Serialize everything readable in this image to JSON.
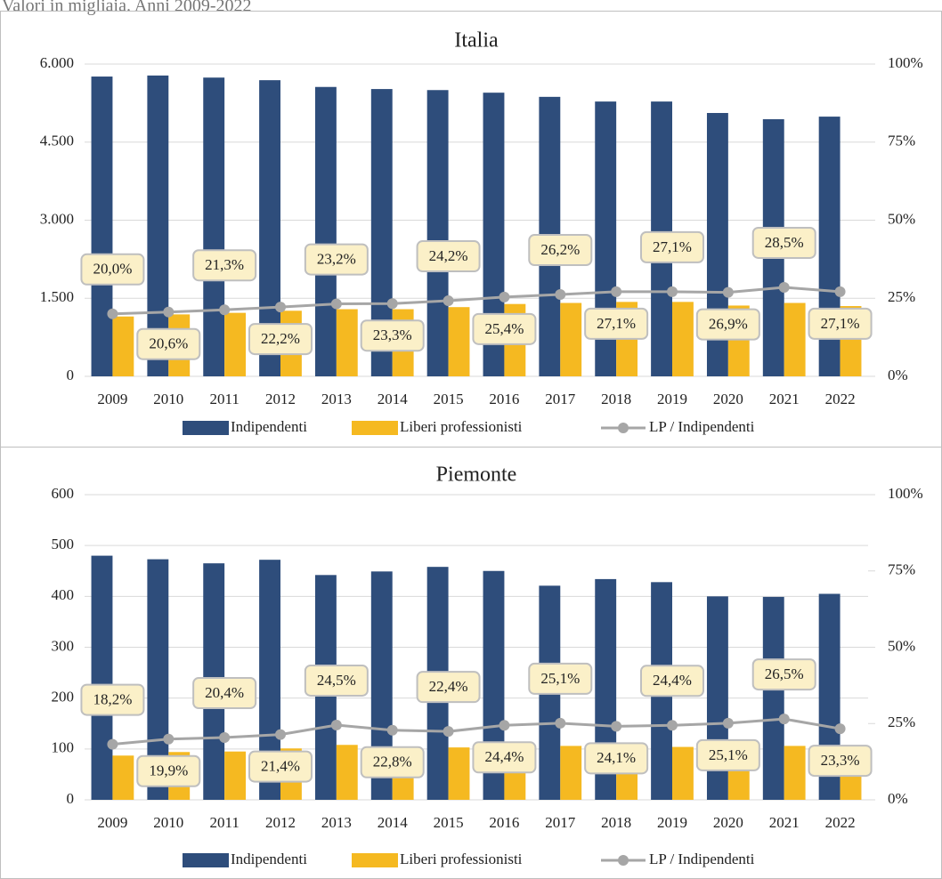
{
  "caption": "Valori in migliaia. Anni 2009-2022",
  "chart_data": [
    {
      "type": "bar",
      "title": "Italia",
      "categories": [
        "2009",
        "2010",
        "2011",
        "2012",
        "2013",
        "2014",
        "2015",
        "2016",
        "2017",
        "2018",
        "2019",
        "2020",
        "2021",
        "2022"
      ],
      "series": [
        {
          "name": "Indipendenti",
          "color": "#2e4d7b",
          "values": [
            5760,
            5780,
            5740,
            5690,
            5560,
            5520,
            5500,
            5450,
            5370,
            5280,
            5280,
            5060,
            4940,
            4990
          ]
        },
        {
          "name": "Liberi professionisti",
          "color": "#f5b921",
          "values": [
            1150,
            1190,
            1220,
            1260,
            1290,
            1290,
            1330,
            1390,
            1410,
            1430,
            1430,
            1360,
            1410,
            1350
          ]
        },
        {
          "name": "LP / Indipendenti",
          "color": "#a6a6a6",
          "type": "line",
          "axis": "y2",
          "values": [
            20.0,
            20.6,
            21.3,
            22.2,
            23.2,
            23.3,
            24.2,
            25.4,
            26.2,
            27.1,
            27.1,
            26.9,
            28.5,
            27.1
          ],
          "value_labels": [
            "20,0%",
            "20,6%",
            "21,3%",
            "22,2%",
            "23,2%",
            "23,3%",
            "24,2%",
            "25,4%",
            "26,2%",
            "27,1%",
            "27,1%",
            "26,9%",
            "28,5%",
            "27,1%"
          ]
        }
      ],
      "ylim": [
        0,
        6000
      ],
      "yticks": [
        0,
        {
          "value": 1500,
          "label": "1.500"
        },
        {
          "value": 3000,
          "label": "3.000"
        },
        {
          "value": 4500,
          "label": "4.500"
        },
        {
          "value": 6000,
          "label": "6.000"
        }
      ],
      "y2lim": [
        0,
        100
      ],
      "y2ticks": [
        {
          "value": 0,
          "label": "0%"
        },
        {
          "value": 25,
          "label": "25%"
        },
        {
          "value": 50,
          "label": "50%"
        },
        {
          "value": 75,
          "label": "75%"
        },
        {
          "value": 100,
          "label": "100%"
        }
      ],
      "grid": true,
      "legend": "bottom"
    },
    {
      "type": "bar",
      "title": "Piemonte",
      "categories": [
        "2009",
        "2010",
        "2011",
        "2012",
        "2013",
        "2014",
        "2015",
        "2016",
        "2017",
        "2018",
        "2019",
        "2020",
        "2021",
        "2022"
      ],
      "series": [
        {
          "name": "Indipendenti",
          "color": "#2e4d7b",
          "values": [
            480,
            473,
            465,
            472,
            442,
            449,
            458,
            450,
            421,
            434,
            428,
            400,
            399,
            405
          ]
        },
        {
          "name": "Liberi professionisti",
          "color": "#f5b921",
          "values": [
            87,
            94,
            95,
            101,
            108,
            102,
            103,
            110,
            106,
            105,
            104,
            100,
            106,
            94
          ]
        },
        {
          "name": "LP / Indipendenti",
          "color": "#a6a6a6",
          "type": "line",
          "axis": "y2",
          "values": [
            18.2,
            19.9,
            20.4,
            21.4,
            24.5,
            22.8,
            22.4,
            24.4,
            25.1,
            24.1,
            24.4,
            25.1,
            26.5,
            23.3
          ],
          "value_labels": [
            "18,2%",
            "19,9%",
            "20,4%",
            "21,4%",
            "24,5%",
            "22,8%",
            "22,4%",
            "24,4%",
            "25,1%",
            "24,1%",
            "24,4%",
            "25,1%",
            "26,5%",
            "23,3%"
          ]
        }
      ],
      "ylim": [
        0,
        600
      ],
      "yticks": [
        0,
        100,
        200,
        300,
        400,
        500,
        600
      ],
      "y2lim": [
        0,
        100
      ],
      "y2ticks": [
        {
          "value": 0,
          "label": "0%"
        },
        {
          "value": 25,
          "label": "25%"
        },
        {
          "value": 50,
          "label": "50%"
        },
        {
          "value": 75,
          "label": "75%"
        },
        {
          "value": 100,
          "label": "100%"
        }
      ],
      "grid": true,
      "legend": "bottom"
    }
  ]
}
